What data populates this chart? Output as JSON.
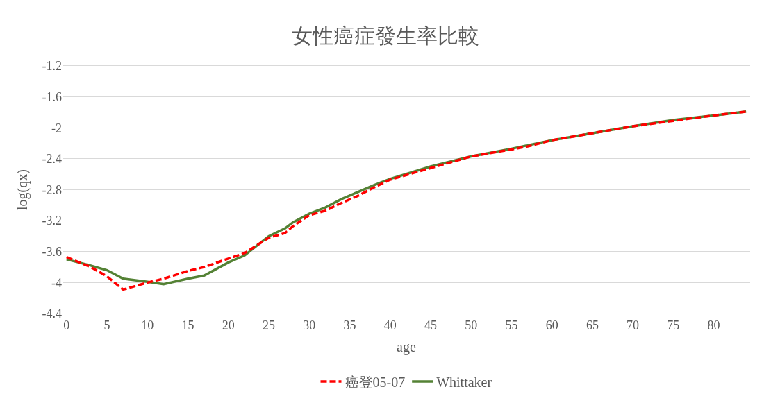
{
  "chart_data": {
    "type": "line",
    "title": "女性癌症發生率比較",
    "xlabel": "age",
    "ylabel": "log(qx)",
    "xlim": [
      -0.5,
      84.5
    ],
    "xticks": [
      0,
      5,
      10,
      15,
      20,
      25,
      30,
      35,
      40,
      45,
      50,
      55,
      60,
      65,
      70,
      75,
      80
    ],
    "ylim": [
      -4.4,
      -1.2
    ],
    "yticks": [
      -1.2,
      -1.6,
      -2,
      -2.4,
      -2.8,
      -3.2,
      -3.6,
      -4,
      -4.4
    ],
    "grid": "y",
    "legend": "bottom",
    "series": [
      {
        "name": "癌登05-07",
        "color": "#ff0000",
        "line_style": "dashed",
        "x": [
          0,
          3,
          5,
          7,
          10,
          12,
          15,
          17,
          20,
          22,
          25,
          27,
          28,
          30,
          32,
          34,
          36,
          38,
          40,
          45,
          50,
          55,
          57,
          60,
          65,
          70,
          75,
          80,
          84
        ],
        "values": [
          -3.67,
          -3.8,
          -3.92,
          -4.09,
          -4.0,
          -3.95,
          -3.85,
          -3.8,
          -3.69,
          -3.62,
          -3.42,
          -3.36,
          -3.27,
          -3.13,
          -3.07,
          -2.97,
          -2.88,
          -2.77,
          -2.67,
          -2.52,
          -2.37,
          -2.28,
          -2.24,
          -2.16,
          -2.07,
          -1.98,
          -1.91,
          -1.84,
          -1.79
        ]
      },
      {
        "name": "Whittaker",
        "color": "#548235",
        "line_style": "solid",
        "x": [
          0,
          3,
          5,
          7,
          10,
          12,
          15,
          17,
          20,
          22,
          25,
          27,
          28,
          30,
          32,
          34,
          36,
          38,
          40,
          45,
          50,
          55,
          60,
          65,
          70,
          75,
          80,
          84
        ],
        "values": [
          -3.7,
          -3.78,
          -3.84,
          -3.95,
          -3.99,
          -4.02,
          -3.95,
          -3.91,
          -3.74,
          -3.65,
          -3.4,
          -3.3,
          -3.22,
          -3.11,
          -3.03,
          -2.92,
          -2.83,
          -2.74,
          -2.66,
          -2.5,
          -2.37,
          -2.27,
          -2.16,
          -2.07,
          -1.98,
          -1.9,
          -1.84,
          -1.79
        ]
      }
    ]
  }
}
